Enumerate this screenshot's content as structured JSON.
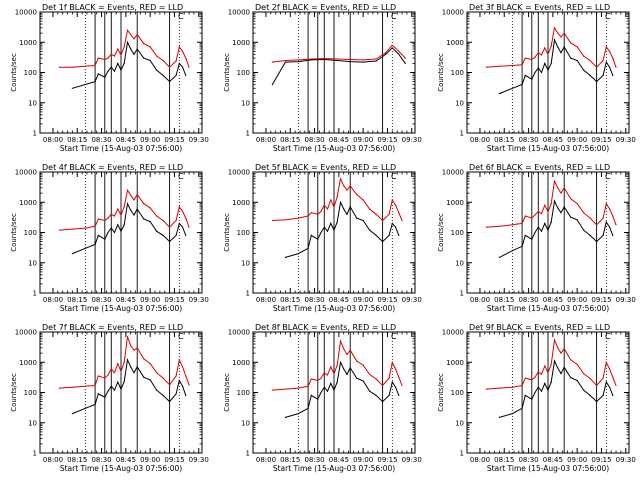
{
  "colors": {
    "events": "#000000",
    "lld": "#e00000",
    "frame": "#000000"
  },
  "common": {
    "xlabel": "Start Time (15-Aug-03 07:56:00)",
    "ylabel": "Counts/sec",
    "x_ticks": [
      "08:00",
      "08:15",
      "08:30",
      "08:45",
      "09:00",
      "09:15",
      "09:30"
    ],
    "y_ticks": [
      "1",
      "10",
      "100",
      "1000",
      "10000"
    ],
    "xlim_min": [
      0,
      50
    ],
    "ylim": [
      1,
      10000
    ],
    "yscale": "log",
    "minor_label": "C"
  },
  "chart_data": [
    {
      "type": "line",
      "title": "Det 1f BLACK = Events, RED = LLD",
      "ylabel": "Counts/sec",
      "xlabel": "Start Time (15-Aug-03 07:56:00)",
      "vlines_solid": [
        17,
        20,
        22,
        25,
        30,
        40
      ],
      "vlines_dotted": [
        14,
        43
      ],
      "x": [
        6,
        10,
        14,
        17,
        18,
        20,
        21,
        22,
        23,
        24,
        25,
        26,
        27,
        28,
        29,
        30,
        32,
        34,
        36,
        38,
        40,
        42,
        43,
        44,
        45,
        46
      ],
      "series": [
        {
          "name": "LLD",
          "values": [
            150,
            150,
            160,
            170,
            300,
            270,
            300,
            400,
            350,
            600,
            380,
            700,
            2500,
            1800,
            1300,
            1800,
            900,
            700,
            350,
            250,
            150,
            240,
            700,
            500,
            300,
            150
          ]
        },
        {
          "name": "Events",
          "values": [
            0,
            30,
            40,
            50,
            90,
            70,
            110,
            150,
            110,
            200,
            120,
            200,
            1000,
            600,
            400,
            600,
            300,
            250,
            120,
            80,
            50,
            80,
            200,
            150,
            80,
            0
          ]
        }
      ]
    },
    {
      "type": "line",
      "title": "Det 2f BLACK = Events, RED = LLD",
      "ylabel": "Counts/sec",
      "xlabel": "Start Time (15-Aug-03 07:56:00)",
      "vlines_solid": [
        17,
        20,
        22,
        25,
        30,
        40
      ],
      "vlines_dotted": [
        14,
        43
      ],
      "x": [
        6,
        10,
        14,
        18,
        22,
        26,
        30,
        34,
        38,
        41,
        43,
        45,
        47
      ],
      "series": [
        {
          "name": "LLD",
          "values": [
            220,
            250,
            260,
            280,
            290,
            280,
            270,
            260,
            280,
            450,
            800,
            500,
            300
          ]
        },
        {
          "name": "Events",
          "values": [
            40,
            220,
            230,
            260,
            270,
            250,
            230,
            220,
            240,
            400,
            650,
            400,
            200
          ]
        }
      ]
    },
    {
      "type": "line",
      "title": "Det 3f BLACK = Events, RED = LLD",
      "ylabel": "Counts/sec",
      "xlabel": "Start Time (15-Aug-03 07:56:00)",
      "vlines_solid": [
        17,
        20,
        22,
        25,
        30,
        40
      ],
      "vlines_dotted": [
        14,
        43
      ],
      "x": [
        6,
        10,
        14,
        17,
        18,
        20,
        21,
        22,
        23,
        24,
        25,
        26,
        27,
        28,
        29,
        30,
        32,
        34,
        36,
        38,
        40,
        42,
        43,
        44,
        45,
        46
      ],
      "series": [
        {
          "name": "LLD",
          "values": [
            150,
            160,
            170,
            180,
            300,
            270,
            320,
            450,
            380,
            650,
            400,
            750,
            3000,
            2000,
            1500,
            2000,
            950,
            700,
            350,
            250,
            150,
            250,
            700,
            500,
            300,
            150
          ]
        },
        {
          "name": "Events",
          "values": [
            0,
            20,
            30,
            40,
            80,
            60,
            100,
            140,
            100,
            200,
            120,
            200,
            1200,
            700,
            450,
            700,
            300,
            250,
            120,
            80,
            50,
            80,
            220,
            150,
            80,
            0
          ]
        }
      ]
    },
    {
      "type": "line",
      "title": "Det 4f BLACK = Events, RED = LLD",
      "ylabel": "Counts/sec",
      "xlabel": "Start Time (15-Aug-03 07:56:00)",
      "vlines_solid": [
        17,
        20,
        22,
        25,
        30,
        40
      ],
      "vlines_dotted": [
        14,
        43
      ],
      "x": [
        6,
        10,
        14,
        17,
        18,
        20,
        21,
        22,
        23,
        24,
        25,
        26,
        27,
        28,
        29,
        30,
        32,
        34,
        36,
        38,
        40,
        42,
        43,
        44,
        45,
        46
      ],
      "series": [
        {
          "name": "LLD",
          "values": [
            120,
            130,
            140,
            160,
            280,
            250,
            300,
            400,
            350,
            600,
            380,
            700,
            2500,
            1700,
            1200,
            1800,
            900,
            650,
            350,
            250,
            150,
            250,
            700,
            500,
            300,
            150
          ]
        },
        {
          "name": "Events",
          "values": [
            0,
            20,
            30,
            40,
            80,
            60,
            100,
            140,
            100,
            180,
            110,
            180,
            900,
            550,
            380,
            600,
            280,
            230,
            110,
            80,
            50,
            80,
            200,
            150,
            80,
            0
          ]
        }
      ]
    },
    {
      "type": "line",
      "title": "Det 5f BLACK = Events, RED = LLD",
      "ylabel": "Counts/sec",
      "xlabel": "Start Time (15-Aug-03 07:56:00)",
      "vlines_solid": [
        17,
        20,
        22,
        25,
        30,
        40
      ],
      "vlines_dotted": [
        14,
        43
      ],
      "x": [
        6,
        10,
        14,
        17,
        18,
        20,
        21,
        22,
        23,
        24,
        25,
        26,
        27,
        28,
        29,
        30,
        32,
        34,
        36,
        38,
        40,
        42,
        43,
        44,
        45,
        46
      ],
      "series": [
        {
          "name": "LLD",
          "values": [
            250,
            260,
            300,
            350,
            450,
            400,
            500,
            800,
            600,
            1200,
            700,
            1500,
            6000,
            3500,
            2500,
            3500,
            1800,
            1200,
            600,
            400,
            250,
            400,
            1200,
            800,
            450,
            250
          ]
        },
        {
          "name": "Events",
          "values": [
            0,
            15,
            20,
            30,
            80,
            60,
            100,
            150,
            110,
            200,
            120,
            220,
            1000,
            600,
            400,
            700,
            300,
            250,
            120,
            80,
            50,
            80,
            200,
            150,
            80,
            0
          ]
        }
      ]
    },
    {
      "type": "line",
      "title": "Det 6f BLACK = Events, RED = LLD",
      "ylabel": "Counts/sec",
      "xlabel": "Start Time (15-Aug-03 07:56:00)",
      "vlines_solid": [
        17,
        20,
        22,
        25,
        30,
        40
      ],
      "vlines_dotted": [
        14,
        43
      ],
      "x": [
        6,
        10,
        14,
        17,
        18,
        20,
        21,
        22,
        23,
        24,
        25,
        26,
        27,
        28,
        29,
        30,
        32,
        34,
        36,
        38,
        40,
        42,
        43,
        44,
        45,
        46
      ],
      "series": [
        {
          "name": "LLD",
          "values": [
            150,
            160,
            180,
            200,
            350,
            300,
            380,
            500,
            420,
            800,
            480,
            900,
            5000,
            3000,
            2000,
            3000,
            1300,
            900,
            450,
            300,
            180,
            300,
            900,
            600,
            350,
            180
          ]
        },
        {
          "name": "Events",
          "values": [
            0,
            15,
            25,
            35,
            80,
            60,
            100,
            150,
            110,
            200,
            120,
            220,
            1100,
            650,
            450,
            700,
            320,
            260,
            120,
            80,
            50,
            80,
            220,
            150,
            80,
            0
          ]
        }
      ]
    },
    {
      "type": "line",
      "title": "Det 7f BLACK = Events, RED = LLD",
      "ylabel": "Counts/sec",
      "xlabel": "Start Time (15-Aug-03 07:56:00)",
      "vlines_solid": [
        17,
        20,
        22,
        25,
        30,
        40
      ],
      "vlines_dotted": [
        14,
        43
      ],
      "x": [
        6,
        10,
        14,
        17,
        18,
        20,
        21,
        22,
        23,
        24,
        25,
        26,
        27,
        28,
        29,
        30,
        32,
        34,
        36,
        38,
        40,
        42,
        43,
        44,
        45,
        46
      ],
      "series": [
        {
          "name": "LLD",
          "values": [
            140,
            150,
            160,
            170,
            350,
            300,
            380,
            600,
            450,
            900,
            500,
            1000,
            7000,
            3500,
            2500,
            3000,
            1300,
            900,
            450,
            300,
            180,
            350,
            1200,
            700,
            350,
            180
          ]
        },
        {
          "name": "Events",
          "values": [
            0,
            20,
            30,
            40,
            90,
            70,
            110,
            160,
            120,
            220,
            130,
            230,
            1200,
            700,
            450,
            700,
            320,
            260,
            120,
            80,
            50,
            90,
            250,
            160,
            80,
            0
          ]
        }
      ]
    },
    {
      "type": "line",
      "title": "Det 8f BLACK = Events, RED = LLD",
      "ylabel": "Counts/sec",
      "xlabel": "Start Time (15-Aug-03 07:56:00)",
      "vlines_solid": [
        17,
        20,
        22,
        25,
        30,
        40
      ],
      "vlines_dotted": [
        14,
        43
      ],
      "x": [
        6,
        10,
        14,
        17,
        18,
        20,
        21,
        22,
        23,
        24,
        25,
        26,
        27,
        28,
        29,
        30,
        32,
        34,
        36,
        38,
        40,
        42,
        43,
        44,
        45,
        46
      ],
      "series": [
        {
          "name": "LLD",
          "values": [
            120,
            130,
            140,
            160,
            280,
            250,
            300,
            450,
            380,
            700,
            420,
            800,
            5000,
            2800,
            1800,
            2500,
            1100,
            800,
            400,
            280,
            170,
            300,
            1000,
            600,
            320,
            170
          ]
        },
        {
          "name": "Events",
          "values": [
            0,
            15,
            20,
            30,
            80,
            60,
            100,
            150,
            110,
            200,
            120,
            220,
            1000,
            600,
            400,
            650,
            300,
            240,
            110,
            80,
            50,
            80,
            220,
            150,
            80,
            0
          ]
        }
      ]
    },
    {
      "type": "line",
      "title": "Det 9f BLACK = Events, RED = LLD",
      "ylabel": "Counts/sec",
      "xlabel": "Start Time (15-Aug-03 07:56:00)",
      "vlines_solid": [
        17,
        20,
        22,
        25,
        30,
        40
      ],
      "vlines_dotted": [
        14,
        43
      ],
      "x": [
        6,
        10,
        14,
        17,
        18,
        20,
        21,
        22,
        23,
        24,
        25,
        26,
        27,
        28,
        29,
        30,
        32,
        34,
        36,
        38,
        40,
        42,
        43,
        44,
        45,
        46
      ],
      "series": [
        {
          "name": "LLD",
          "values": [
            130,
            140,
            150,
            170,
            300,
            260,
            320,
            480,
            400,
            750,
            450,
            850,
            5500,
            3000,
            2000,
            2800,
            1200,
            850,
            420,
            290,
            170,
            300,
            1000,
            600,
            320,
            170
          ]
        },
        {
          "name": "Events",
          "values": [
            0,
            15,
            20,
            30,
            80,
            60,
            100,
            150,
            110,
            200,
            120,
            220,
            1100,
            650,
            420,
            680,
            310,
            250,
            120,
            80,
            50,
            80,
            220,
            150,
            80,
            0
          ]
        }
      ]
    }
  ]
}
